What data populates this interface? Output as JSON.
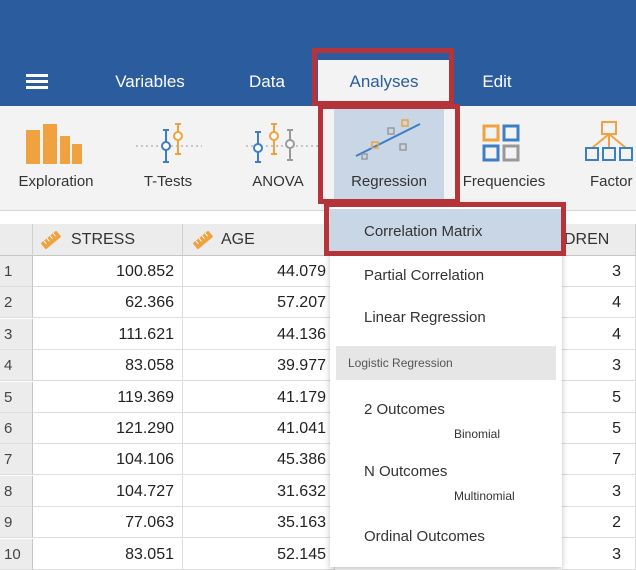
{
  "header": {
    "tabs": [
      {
        "label": "Variables"
      },
      {
        "label": "Data"
      },
      {
        "label": "Analyses"
      },
      {
        "label": "Edit"
      }
    ]
  },
  "ribbon": {
    "buttons": [
      {
        "label": "Exploration",
        "icon": "bar-chart-icon"
      },
      {
        "label": "T-Tests",
        "icon": "ttest-icon"
      },
      {
        "label": "ANOVA",
        "icon": "anova-icon"
      },
      {
        "label": "Regression",
        "icon": "regression-icon"
      },
      {
        "label": "Frequencies",
        "icon": "frequencies-icon"
      },
      {
        "label": "Factor",
        "icon": "factor-icon"
      }
    ]
  },
  "spreadsheet": {
    "columns": [
      "STRESS",
      "AGE",
      "DREN"
    ],
    "rows": [
      {
        "num": "1",
        "stress": "100.852",
        "age": "44.079",
        "children": "3"
      },
      {
        "num": "2",
        "stress": "62.366",
        "age": "57.207",
        "children": "4"
      },
      {
        "num": "3",
        "stress": "111.621",
        "age": "44.136",
        "children": "4"
      },
      {
        "num": "4",
        "stress": "83.058",
        "age": "39.977",
        "children": "3"
      },
      {
        "num": "5",
        "stress": "119.369",
        "age": "41.179",
        "children": "5"
      },
      {
        "num": "6",
        "stress": "121.290",
        "age": "41.041",
        "children": "5"
      },
      {
        "num": "7",
        "stress": "104.106",
        "age": "45.386",
        "children": "7"
      },
      {
        "num": "8",
        "stress": "104.727",
        "age": "31.632",
        "children": "3"
      },
      {
        "num": "9",
        "stress": "77.063",
        "age": "35.163",
        "children": "2"
      },
      {
        "num": "10",
        "stress": "83.051",
        "age": "52.145",
        "children": "3"
      }
    ]
  },
  "dropdown": {
    "correlation_matrix": "Correlation Matrix",
    "partial_correlation": "Partial Correlation",
    "linear_regression": "Linear Regression",
    "logistic_group": "Logistic Regression",
    "two_outcomes": "2 Outcomes",
    "two_outcomes_sub": "Binomial",
    "n_outcomes": "N Outcomes",
    "n_outcomes_sub": "Multinomial",
    "ordinal_outcomes": "Ordinal Outcomes"
  },
  "colors": {
    "header_bg": "#2a5c9e",
    "ribbon_bg": "#f3f3f3",
    "highlight": "#b5343a",
    "selected": "#c9d6e6"
  }
}
